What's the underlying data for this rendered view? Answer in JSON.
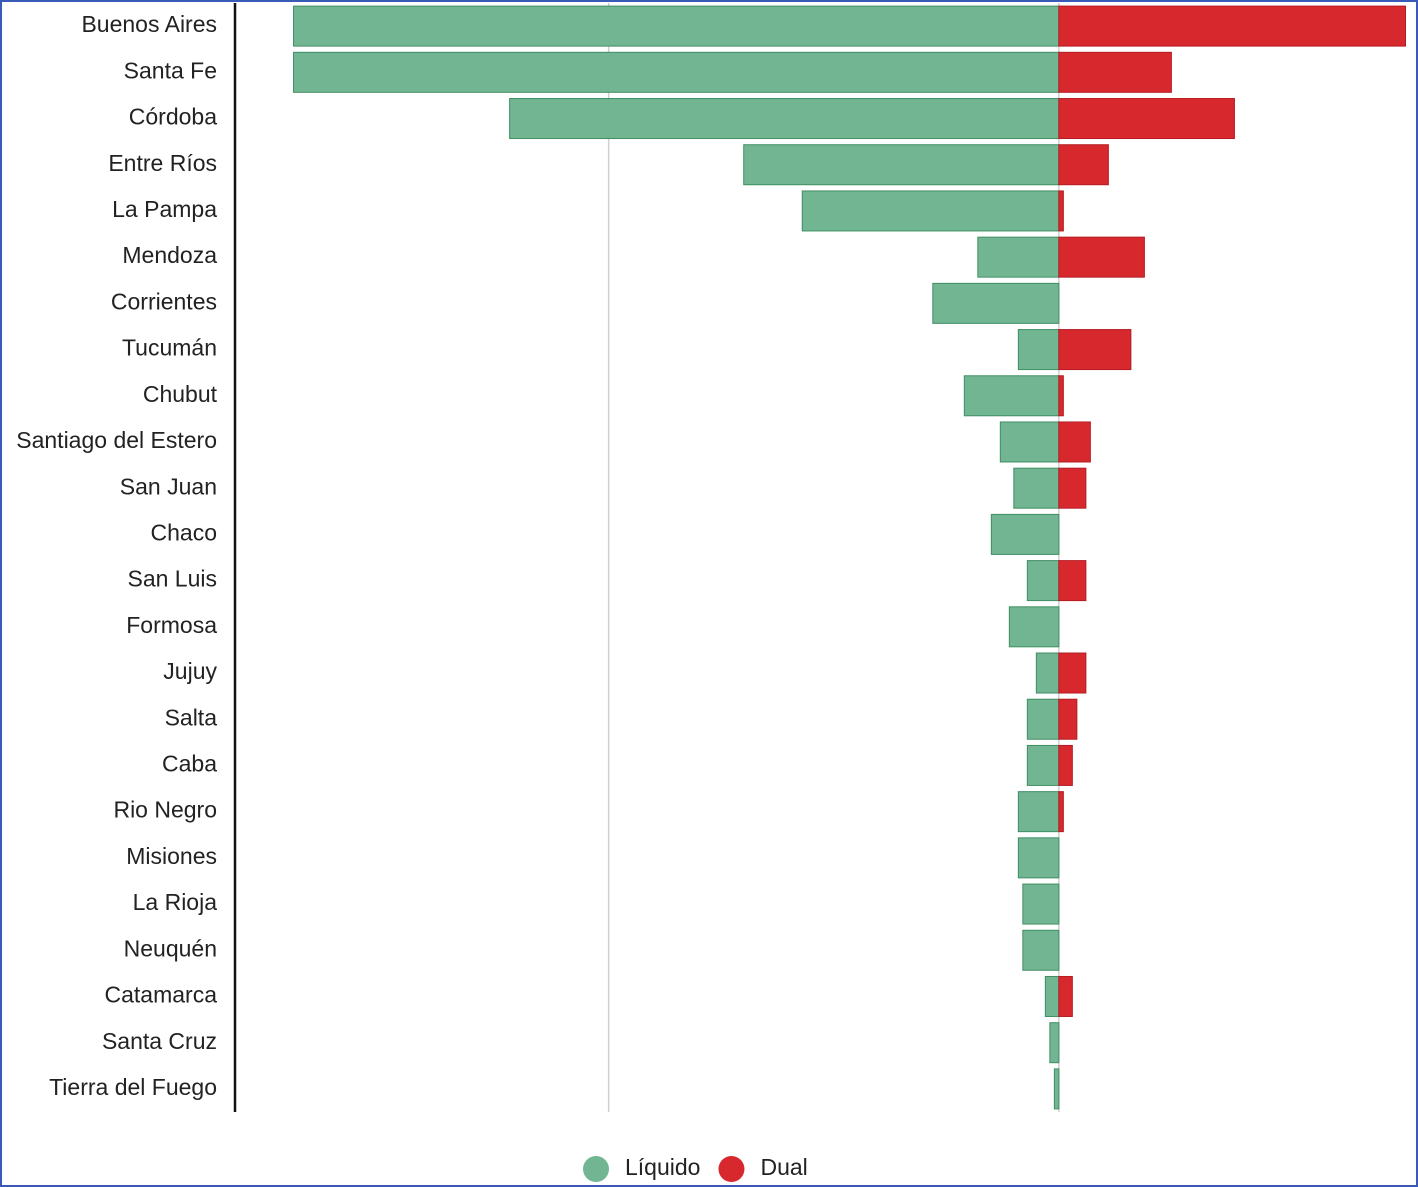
{
  "chart_data": {
    "type": "diverging_bar",
    "categories": [
      "Buenos Aires",
      "Santa Fe",
      "Córdoba",
      "Entre Ríos",
      "La Pampa",
      "Mendoza",
      "Corrientes",
      "Tucumán",
      "Chubut",
      "Santiago del Estero",
      "San Juan",
      "Chaco",
      "San Luis",
      "Formosa",
      "Jujuy",
      "Salta",
      "Caba",
      "Rio Negro",
      "Misiones",
      "La Rioja",
      "Neuquén",
      "Catamarca",
      "Santa Cruz",
      "Tierra del Fuego"
    ],
    "series": [
      {
        "name": "Líquido",
        "color": "#72b592",
        "values": [
          -170,
          -170,
          -122,
          -70,
          -57,
          -18,
          -28,
          -9,
          -21,
          -13,
          -10,
          -15,
          -7,
          -11,
          -5,
          -7,
          -7,
          -9,
          -9,
          -8,
          -8,
          -3,
          -2,
          -1
        ]
      },
      {
        "name": "Dual",
        "color": "#d7282e",
        "values": [
          77,
          25,
          39,
          11,
          1,
          19,
          0,
          16,
          1,
          7,
          6,
          0,
          6,
          0,
          6,
          4,
          3,
          1,
          0,
          0,
          0,
          3,
          0,
          0
        ]
      }
    ],
    "xlim": [
      -183,
      78
    ],
    "xticks": [
      -100,
      0
    ],
    "grid": true,
    "legend": "bottom"
  }
}
